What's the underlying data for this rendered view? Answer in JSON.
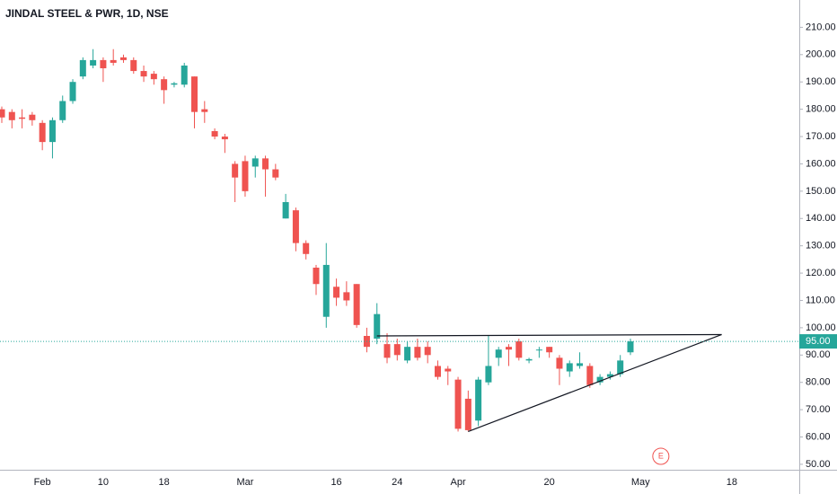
{
  "chart_data": {
    "type": "candlestick",
    "title": "JINDAL STEEL & PWR, 1D, NSE",
    "categories": [
      null,
      null,
      null,
      null,
      "Feb",
      null,
      null,
      null,
      null,
      null,
      "10",
      null,
      null,
      null,
      null,
      null,
      "18",
      null,
      null,
      null,
      null,
      null,
      null,
      null,
      "Mar",
      null,
      null,
      null,
      null,
      null,
      null,
      null,
      null,
      "16",
      null,
      null,
      null,
      null,
      null,
      "24",
      null,
      null,
      null,
      null,
      null,
      "Apr",
      null,
      null,
      null,
      null,
      null,
      null,
      null,
      null,
      "20",
      null,
      null,
      null,
      null,
      null,
      null,
      null,
      null,
      "May",
      null,
      null,
      null,
      null,
      null,
      null,
      null,
      null,
      "18"
    ],
    "open": [
      180,
      179,
      177,
      178,
      175,
      168,
      176,
      183,
      192,
      196,
      198,
      198,
      199,
      198,
      194,
      193,
      191,
      189,
      189,
      192,
      180,
      172,
      170,
      160,
      161,
      159,
      162,
      158,
      140,
      143,
      131,
      122,
      104,
      115,
      113,
      116,
      97,
      96,
      94,
      94,
      88,
      93,
      93,
      86,
      85,
      81,
      74,
      66,
      80,
      89,
      93,
      95,
      88,
      92,
      93,
      89,
      84,
      86,
      86,
      80,
      82,
      83,
      91,
      null,
      null,
      null,
      null,
      null,
      null,
      null,
      null,
      null,
      null
    ],
    "high": [
      181,
      180,
      180,
      179,
      176,
      177,
      185,
      191,
      199,
      202,
      199,
      202,
      200,
      199,
      196,
      194,
      192,
      190,
      197,
      192,
      183,
      173,
      171,
      161,
      163,
      163,
      163,
      160,
      149,
      144,
      132,
      123,
      131,
      118,
      117,
      116,
      100,
      109,
      98,
      96,
      95,
      96,
      95,
      88,
      86,
      82,
      77,
      82,
      97,
      93,
      94,
      96,
      89,
      93,
      93,
      90,
      88,
      91,
      87,
      83,
      84,
      90,
      96,
      null,
      null,
      null,
      null,
      null,
      null,
      null,
      null,
      null,
      null
    ],
    "low": [
      175,
      173,
      173,
      174,
      165,
      162,
      175,
      182,
      191,
      195,
      190,
      196,
      197,
      193,
      190,
      189,
      182,
      188,
      188,
      173,
      175,
      169,
      164,
      146,
      148,
      155,
      148,
      154,
      140,
      128,
      125,
      112,
      100,
      108,
      108,
      100,
      91,
      94,
      87,
      88,
      87,
      88,
      87,
      81,
      79,
      62,
      62,
      64,
      79,
      86,
      86,
      88,
      87,
      89,
      89,
      79,
      82,
      85,
      78,
      79,
      81,
      82,
      90,
      null,
      null,
      null,
      null,
      null,
      null,
      null,
      null,
      null,
      null
    ],
    "close": [
      177,
      176,
      176.5,
      176,
      168,
      176,
      183,
      190,
      198,
      198,
      195,
      197,
      198,
      194,
      192,
      191,
      187,
      189.5,
      196,
      179,
      179,
      170,
      169,
      155,
      150,
      162,
      158,
      155,
      146,
      131,
      127,
      116,
      123,
      111,
      110,
      101,
      93,
      105,
      89,
      90,
      93,
      89,
      90,
      82,
      84,
      63,
      62.5,
      81,
      86,
      92,
      92,
      89,
      88.5,
      92,
      91,
      85,
      87,
      87,
      79,
      82,
      83,
      88,
      95,
      null,
      null,
      null,
      null,
      null,
      null,
      null,
      null,
      null,
      null
    ],
    "up_color": "#26a69a",
    "down_color": "#ef5350",
    "ylim": [
      48,
      220
    ],
    "yticks": [
      {
        "value": 50,
        "label": "50.00"
      },
      {
        "value": 60,
        "label": "60.00"
      },
      {
        "value": 70,
        "label": "70.00"
      },
      {
        "value": 80,
        "label": "80.00"
      },
      {
        "value": 90,
        "label": "90.00"
      },
      {
        "value": 100,
        "label": "100.00"
      },
      {
        "value": 110,
        "label": "110.00"
      },
      {
        "value": 120,
        "label": "120.00"
      },
      {
        "value": 130,
        "label": "130.00"
      },
      {
        "value": 140,
        "label": "140.00"
      },
      {
        "value": 150,
        "label": "150.00"
      },
      {
        "value": 160,
        "label": "160.00"
      },
      {
        "value": 170,
        "label": "170.00"
      },
      {
        "value": 180,
        "label": "180.00"
      },
      {
        "value": 190,
        "label": "190.00"
      },
      {
        "value": 200,
        "label": "200.00"
      },
      {
        "value": 210,
        "label": "210.00"
      }
    ],
    "last_price": {
      "value": 95,
      "label": "95.00"
    },
    "trend_lines": [
      {
        "x": [
          37,
          71
        ],
        "y": [
          97,
          97.5
        ]
      },
      {
        "x": [
          46,
          71
        ],
        "y": [
          62,
          97.5
        ]
      }
    ],
    "events": [
      {
        "index": 65,
        "label": "E"
      }
    ],
    "grid": false
  }
}
